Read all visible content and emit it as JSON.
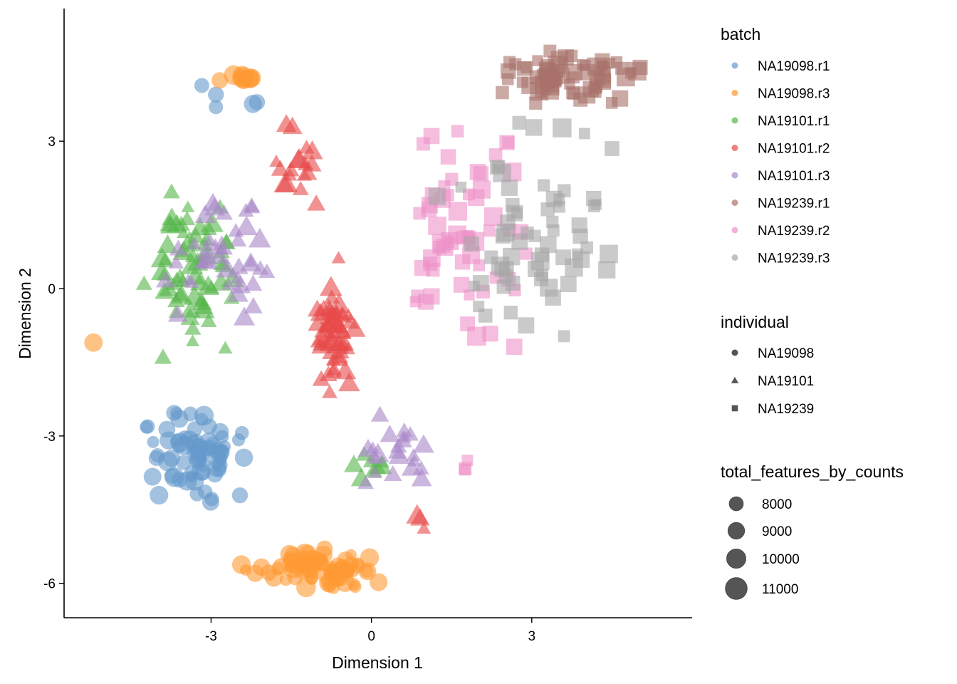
{
  "chart_data": {
    "type": "scatter",
    "xlabel": "Dimension 1",
    "ylabel": "Dimension 2",
    "xlim": [
      -5.75,
      6.0
    ],
    "ylim": [
      -6.7,
      5.7
    ],
    "xticks": [
      -3,
      0,
      3
    ],
    "xtick_labels": [
      "-3",
      "0",
      "3"
    ],
    "yticks": [
      -6,
      -3,
      0,
      3
    ],
    "ytick_labels": [
      "-6",
      "-3",
      "0",
      "3"
    ],
    "grid": false,
    "point_alpha": 0.6,
    "legend_position": "right",
    "legends": {
      "batch": {
        "title": "batch",
        "entries": [
          {
            "label": "NA19098.r1",
            "color": "#6699CC"
          },
          {
            "label": "NA19098.r3",
            "color": "#FF9933"
          },
          {
            "label": "NA19101.r1",
            "color": "#55B649"
          },
          {
            "label": "NA19101.r2",
            "color": "#E74A4A"
          },
          {
            "label": "NA19101.r3",
            "color": "#A987C8"
          },
          {
            "label": "NA19239.r1",
            "color": "#A9726A"
          },
          {
            "label": "NA19239.r2",
            "color": "#EE91C8"
          },
          {
            "label": "NA19239.r3",
            "color": "#A6A6A6"
          }
        ]
      },
      "individual": {
        "title": "individual",
        "entries": [
          {
            "label": "NA19098",
            "shape": "circle"
          },
          {
            "label": "NA19101",
            "shape": "triangle"
          },
          {
            "label": "NA19239",
            "shape": "square"
          }
        ]
      },
      "size": {
        "title": "total_features_by_counts",
        "entries": [
          {
            "label": "8000",
            "value": 8000
          },
          {
            "label": "9000",
            "value": 9000
          },
          {
            "label": "10000",
            "value": 10000
          },
          {
            "label": "11000",
            "value": 11000
          }
        ]
      }
    },
    "series": [
      {
        "name": "NA19098.r1",
        "individual": "NA19098",
        "clusters": [
          {
            "x": [
              -4.5,
              -2.0
            ],
            "y": [
              -4.7,
              -2.1
            ],
            "n": 70,
            "cx": -3.1,
            "cy": -3.8
          },
          {
            "x": [
              -3.6,
              -1.2
            ],
            "y": [
              3.4,
              4.3
            ],
            "n": 5,
            "cx": -1.4,
            "cy": 4.1
          }
        ]
      },
      {
        "name": "NA19098.r3",
        "individual": "NA19098",
        "clusters": [
          {
            "x": [
              -2.6,
              0.5
            ],
            "y": [
              -6.2,
              -5.2
            ],
            "n": 75,
            "cx": -0.9,
            "cy": -5.6
          },
          {
            "x": [
              -3.1,
              -1.8
            ],
            "y": [
              4.2,
              4.4
            ],
            "n": 12,
            "cx": -2.4,
            "cy": 4.3
          },
          {
            "x": [
              -5.2,
              -5.2
            ],
            "y": [
              -1.1,
              -1.1
            ],
            "n": 1,
            "cx": -5.2,
            "cy": -1.1
          }
        ]
      },
      {
        "name": "NA19101.r1",
        "individual": "NA19101",
        "clusters": [
          {
            "x": [
              -4.4,
              -2.2
            ],
            "y": [
              -1.8,
              2.7
            ],
            "n": 65,
            "cx": -3.1,
            "cy": 0.3
          },
          {
            "x": [
              -0.7,
              0.7
            ],
            "y": [
              -4.0,
              -3.3
            ],
            "n": 8,
            "cx": 0.1,
            "cy": -3.6
          }
        ]
      },
      {
        "name": "NA19101.r2",
        "individual": "NA19101",
        "clusters": [
          {
            "x": [
              -1.2,
              -0.2
            ],
            "y": [
              -2.6,
              0.9
            ],
            "n": 55,
            "cx": -0.8,
            "cy": -0.8
          },
          {
            "x": [
              -2.3,
              -0.8
            ],
            "y": [
              1.5,
              3.9
            ],
            "n": 18,
            "cx": -1.5,
            "cy": 2.5
          },
          {
            "x": [
              0.6,
              1.2
            ],
            "y": [
              -5.0,
              -4.5
            ],
            "n": 3,
            "cx": 0.9,
            "cy": -4.8
          }
        ]
      },
      {
        "name": "NA19101.r3",
        "individual": "NA19101",
        "clusters": [
          {
            "x": [
              -4.5,
              -1.5
            ],
            "y": [
              -1.3,
              2.6
            ],
            "n": 40,
            "cx": -2.2,
            "cy": 0.6
          },
          {
            "x": [
              -0.8,
              1.6
            ],
            "y": [
              -4.6,
              -2.3
            ],
            "n": 22,
            "cx": 0.6,
            "cy": -4.1
          }
        ]
      },
      {
        "name": "NA19239.r1",
        "individual": "NA19239",
        "clusters": [
          {
            "x": [
              1.5,
              5.5
            ],
            "y": [
              3.5,
              5.1
            ],
            "n": 70,
            "cx": 3.8,
            "cy": 4.3
          }
        ]
      },
      {
        "name": "NA19239.r2",
        "individual": "NA19239",
        "clusters": [
          {
            "x": [
              0.2,
              3.3
            ],
            "y": [
              -2.2,
              4.2
            ],
            "n": 60,
            "cx": 2.2,
            "cy": 0.6
          },
          {
            "x": [
              1.5,
              1.9
            ],
            "y": [
              -3.9,
              -3.3
            ],
            "n": 3,
            "cx": 1.7,
            "cy": -3.6
          }
        ]
      },
      {
        "name": "NA19239.r3",
        "individual": "NA19239",
        "clusters": [
          {
            "x": [
              0.9,
              5.3
            ],
            "y": [
              -1.7,
              3.8
            ],
            "n": 65,
            "cx": 4.3,
            "cy": 0.6
          }
        ]
      }
    ]
  }
}
